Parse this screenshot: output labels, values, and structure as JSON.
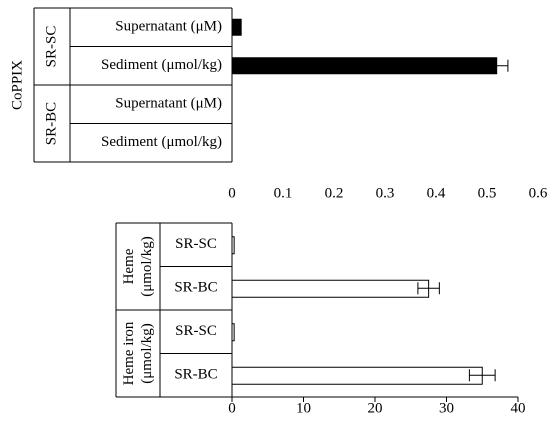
{
  "chart_data": [
    {
      "type": "bar",
      "orientation": "horizontal",
      "group_label": "CoPPIX",
      "subgroups": [
        {
          "label": "SR-SC",
          "rows": [
            {
              "label": "Supernatant  (μM)",
              "value": 0.018,
              "error": 0
            },
            {
              "label": "Sediment   (μmol/kg)",
              "value": 0.519,
              "error": 0.022
            }
          ]
        },
        {
          "label": "SR-BC",
          "rows": [
            {
              "label": "Supernatant  (μM)",
              "value": 0,
              "error": 0
            },
            {
              "label": "Sediment   (μmol/kg)",
              "value": 0,
              "error": 0
            }
          ]
        }
      ],
      "bar_color": "#000000",
      "xlim": [
        0,
        0.6
      ],
      "xticks": [
        "0",
        "0.1",
        "0.2",
        "0.3",
        "0.4",
        "0.5",
        "0.6"
      ]
    },
    {
      "type": "bar",
      "orientation": "horizontal",
      "groups": [
        {
          "label_lines": [
            "Heme",
            "(μmol/kg)"
          ],
          "rows": [
            {
              "label": "SR-SC",
              "value": 0.3,
              "error": 0
            },
            {
              "label": "SR-BC",
              "value": 27.5,
              "error": 1.5
            }
          ]
        },
        {
          "label_lines": [
            "Heme iron",
            "(μmol/kg)"
          ],
          "rows": [
            {
              "label": "SR-SC",
              "value": 0.3,
              "error": 0
            },
            {
              "label": "SR-BC",
              "value": 35.0,
              "error": 1.8
            }
          ]
        }
      ],
      "bar_color": "#ffffff",
      "xlim": [
        0,
        40
      ],
      "xticks": [
        "0",
        "10",
        "20",
        "30",
        "40"
      ]
    }
  ]
}
